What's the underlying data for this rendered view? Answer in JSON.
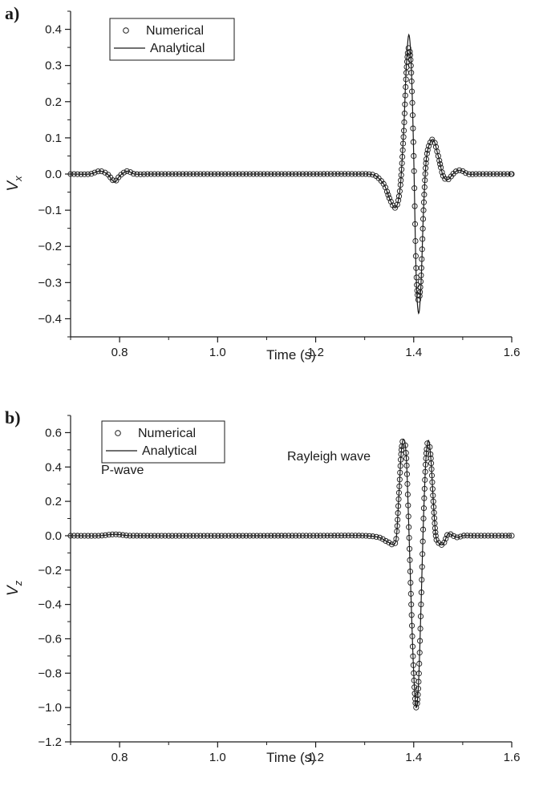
{
  "chart_data": [
    {
      "type": "line",
      "panel": "a)",
      "xlabel": "Time (s)",
      "ylabel": "V",
      "ylabel_sub": "x",
      "xlim": [
        0.7,
        1.6
      ],
      "ylim": [
        -0.45,
        0.45
      ],
      "x_ticks": [
        "0.8",
        "1.0",
        "1.2",
        "1.4",
        "1.6"
      ],
      "y_ticks": [
        "0.4",
        "0.3",
        "0.2",
        "0.1",
        "0.0",
        "−0.1",
        "−0.2",
        "−0.3",
        "−0.4"
      ],
      "legend": {
        "placement": "top-left",
        "entries": [
          "Numerical",
          "Analytical"
        ]
      },
      "annotations": [],
      "series": [
        {
          "name": "Analytical",
          "style": "solid line",
          "x": [
            0.7,
            0.74,
            0.76,
            0.775,
            0.79,
            0.8,
            0.815,
            0.83,
            0.86,
            1.2,
            1.28,
            1.32,
            1.34,
            1.355,
            1.365,
            1.373,
            1.38,
            1.385,
            1.39,
            1.395,
            1.4,
            1.405,
            1.41,
            1.415,
            1.42,
            1.425,
            1.43,
            1.44,
            1.45,
            1.46,
            1.47,
            1.48,
            1.49,
            1.5,
            1.51,
            1.53,
            1.6
          ],
          "y": [
            0.0,
            0.0,
            0.008,
            0.0,
            -0.022,
            -0.005,
            0.008,
            0.0,
            0.0,
            0.0,
            0.0,
            -0.003,
            -0.03,
            -0.08,
            -0.09,
            -0.03,
            0.13,
            0.3,
            0.385,
            0.3,
            0.05,
            -0.28,
            -0.385,
            -0.3,
            -0.1,
            0.03,
            0.075,
            0.095,
            0.05,
            -0.005,
            -0.015,
            0.0,
            0.01,
            0.008,
            0.0,
            0.0,
            0.0
          ]
        },
        {
          "name": "Numerical",
          "style": "open circles",
          "x": [
            0.7,
            0.74,
            0.76,
            0.775,
            0.79,
            0.8,
            0.815,
            0.83,
            0.86,
            1.2,
            1.28,
            1.32,
            1.34,
            1.355,
            1.365,
            1.373,
            1.38,
            1.385,
            1.39,
            1.395,
            1.4,
            1.405,
            1.41,
            1.415,
            1.42,
            1.425,
            1.43,
            1.44,
            1.45,
            1.46,
            1.47,
            1.48,
            1.49,
            1.5,
            1.51,
            1.53,
            1.6
          ],
          "y": [
            0.0,
            0.0,
            0.008,
            0.0,
            -0.02,
            -0.005,
            0.008,
            0.0,
            0.0,
            0.0,
            0.0,
            -0.003,
            -0.03,
            -0.08,
            -0.09,
            -0.03,
            0.12,
            0.28,
            0.35,
            0.28,
            0.05,
            -0.26,
            -0.35,
            -0.28,
            -0.1,
            0.03,
            0.075,
            0.095,
            0.05,
            -0.005,
            -0.015,
            0.0,
            0.01,
            0.008,
            0.0,
            0.0,
            0.0
          ]
        }
      ]
    },
    {
      "type": "line",
      "panel": "b)",
      "xlabel": "Time (s)",
      "ylabel": "V",
      "ylabel_sub": "z",
      "xlim": [
        0.7,
        1.6
      ],
      "ylim": [
        -1.2,
        0.7
      ],
      "x_ticks": [
        "0.8",
        "1.0",
        "1.2",
        "1.4",
        "1.6"
      ],
      "y_ticks": [
        "0.6",
        "0.4",
        "0.2",
        "0.0",
        "−0.2",
        "−0.4",
        "−0.6",
        "−0.8",
        "−1.0",
        "−1.2"
      ],
      "legend": {
        "placement": "top-left",
        "entries": [
          "Numerical",
          "Analytical"
        ]
      },
      "annotations": [
        "P-wave",
        "Rayleigh wave"
      ],
      "series": [
        {
          "name": "Analytical",
          "style": "solid line",
          "x": [
            0.7,
            0.76,
            0.79,
            0.82,
            1.2,
            1.3,
            1.33,
            1.35,
            1.36,
            1.365,
            1.37,
            1.375,
            1.38,
            1.385,
            1.39,
            1.395,
            1.4,
            1.405,
            1.41,
            1.415,
            1.42,
            1.425,
            1.43,
            1.435,
            1.44,
            1.445,
            1.45,
            1.46,
            1.47,
            1.48,
            1.49,
            1.5,
            1.52,
            1.6
          ],
          "y": [
            0.0,
            0.0,
            0.008,
            0.0,
            0.0,
            0.0,
            -0.01,
            -0.04,
            -0.05,
            0.0,
            0.25,
            0.5,
            0.56,
            0.45,
            0.05,
            -0.4,
            -0.8,
            -1.0,
            -0.85,
            -0.4,
            0.1,
            0.45,
            0.555,
            0.45,
            0.2,
            0.0,
            -0.04,
            -0.05,
            0.01,
            0.0,
            -0.01,
            0.0,
            0.0,
            0.0
          ]
        },
        {
          "name": "Numerical",
          "style": "open circles",
          "x": [
            0.7,
            0.76,
            0.79,
            0.82,
            1.2,
            1.3,
            1.33,
            1.35,
            1.36,
            1.365,
            1.37,
            1.375,
            1.38,
            1.385,
            1.39,
            1.395,
            1.4,
            1.405,
            1.41,
            1.415,
            1.42,
            1.425,
            1.43,
            1.435,
            1.44,
            1.445,
            1.45,
            1.46,
            1.47,
            1.48,
            1.49,
            1.5,
            1.52,
            1.6
          ],
          "y": [
            0.0,
            0.0,
            0.008,
            0.0,
            0.0,
            0.0,
            -0.01,
            -0.04,
            -0.05,
            0.0,
            0.25,
            0.5,
            0.56,
            0.45,
            0.05,
            -0.4,
            -0.8,
            -1.0,
            -0.85,
            -0.4,
            0.1,
            0.45,
            0.555,
            0.45,
            0.2,
            0.0,
            -0.04,
            -0.05,
            0.01,
            0.0,
            -0.01,
            0.0,
            0.0,
            0.0
          ]
        }
      ]
    }
  ]
}
